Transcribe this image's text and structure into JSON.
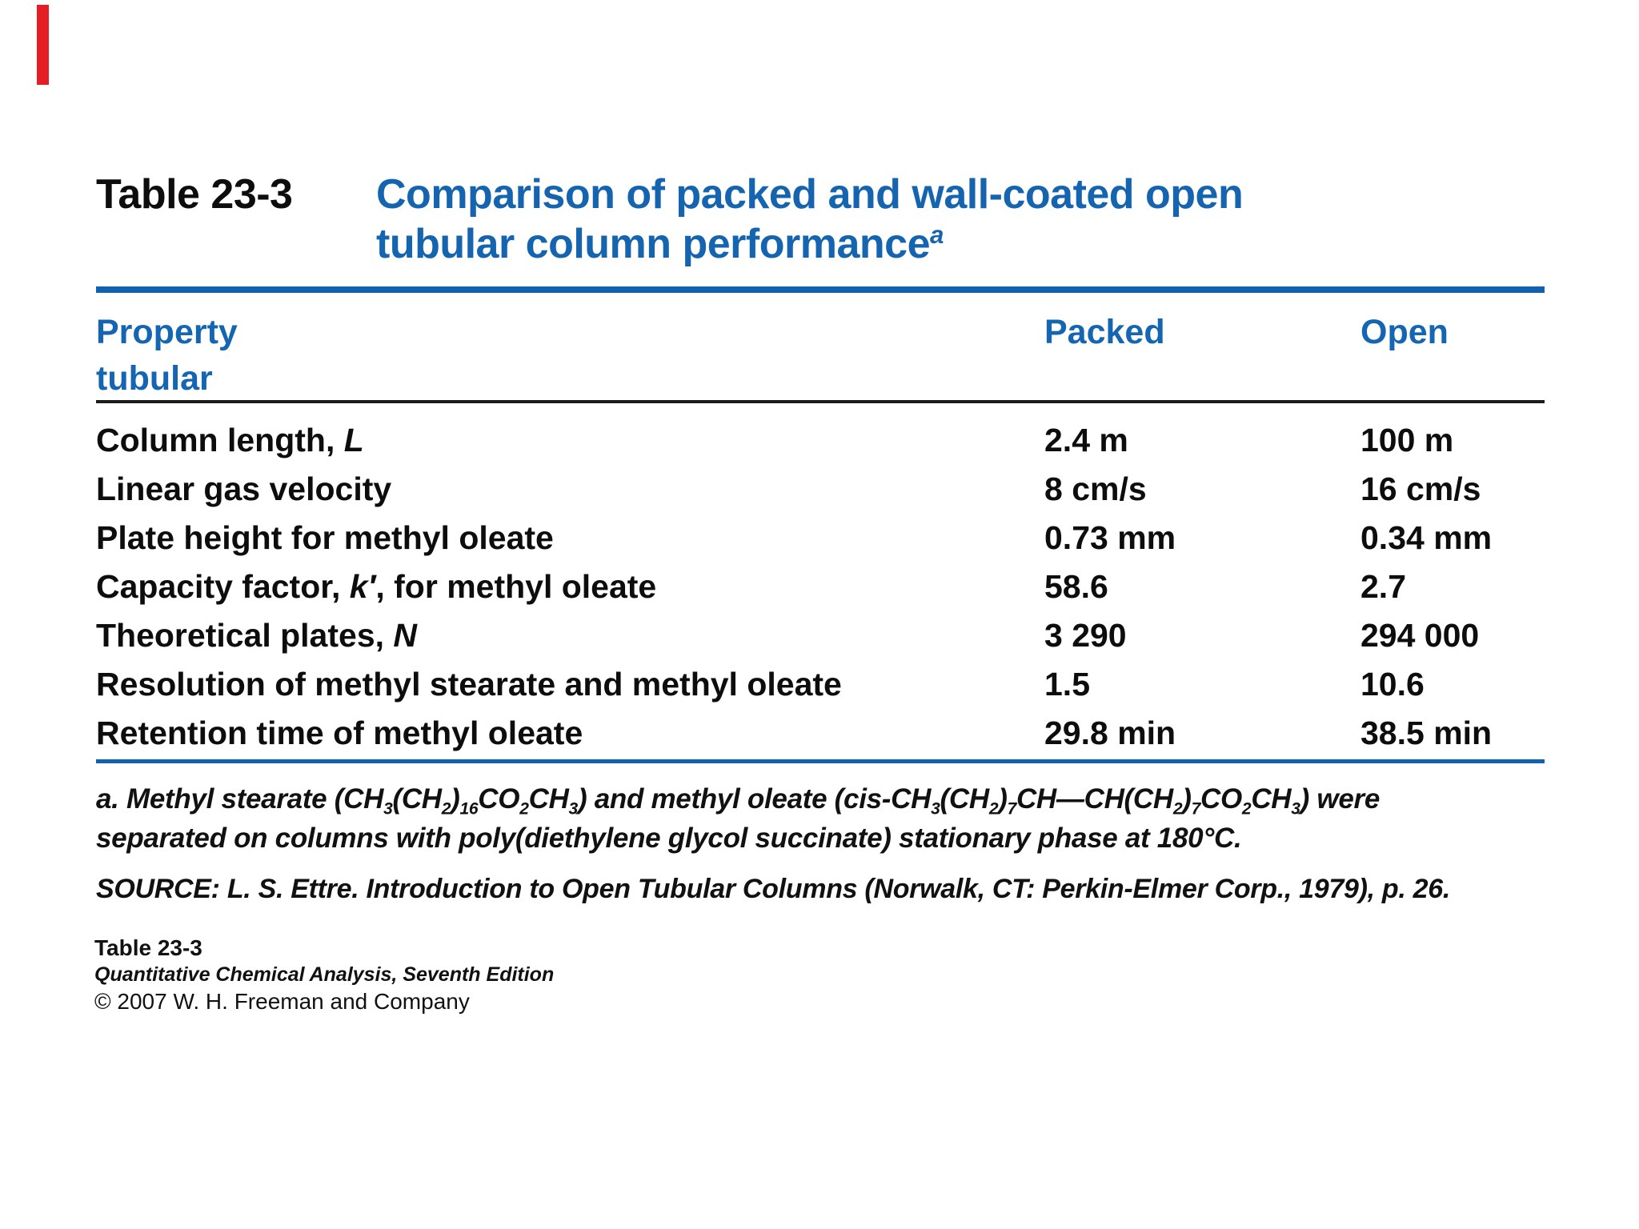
{
  "page": {
    "background": "#ffffff",
    "accent_blue": "#1161b0",
    "header_blue": "#1466b2",
    "text_black": "#0d0d0d",
    "artifact_red": "#e31e24"
  },
  "title": {
    "label": "Table 23-3",
    "line1": "Comparison of packed and wall-coated open",
    "line2": "tubular column performance",
    "superscript": "a"
  },
  "table": {
    "headers": {
      "property_line1": "Property",
      "property_line2": "tubular",
      "packed": "Packed",
      "open": "Open"
    },
    "rows": [
      {
        "property": [
          {
            "t": "Column length, "
          },
          {
            "t": "L",
            "i": true
          }
        ],
        "packed": "2.4 m",
        "open": "100 m"
      },
      {
        "property": "Linear gas velocity",
        "packed": "8 cm/s",
        "open": "16 cm/s"
      },
      {
        "property": "Plate height for methyl oleate",
        "packed": "0.73 mm",
        "open": "0.34 mm"
      },
      {
        "property": [
          {
            "t": "Capacity factor, "
          },
          {
            "t": "k′",
            "i": true
          },
          {
            "t": ", for methyl oleate"
          }
        ],
        "packed": "58.6",
        "open": "2.7"
      },
      {
        "property": [
          {
            "t": "Theoretical plates, "
          },
          {
            "t": "N",
            "i": true
          }
        ],
        "packed": "3 290",
        "open": "294 000"
      },
      {
        "property": "Resolution of methyl stearate and methyl oleate",
        "packed": "1.5",
        "open": "10.6"
      },
      {
        "property": "Retention time of methyl oleate",
        "packed": "29.8 min",
        "open": "38.5 min"
      }
    ]
  },
  "footnote": {
    "line1": [
      {
        "t": "a. Methyl stearate (CH"
      },
      {
        "t": "3",
        "sub": true
      },
      {
        "t": "(CH"
      },
      {
        "t": "2",
        "sub": true
      },
      {
        "t": ")"
      },
      {
        "t": "16",
        "sub": true
      },
      {
        "t": "CO"
      },
      {
        "t": "2",
        "sub": true
      },
      {
        "t": "CH"
      },
      {
        "t": "3",
        "sub": true
      },
      {
        "t": ") and methyl oleate (cis-CH"
      },
      {
        "t": "3",
        "sub": true
      },
      {
        "t": "(CH"
      },
      {
        "t": "2",
        "sub": true
      },
      {
        "t": ")"
      },
      {
        "t": "7",
        "sub": true
      },
      {
        "t": "CH—CH(CH"
      },
      {
        "t": "2",
        "sub": true
      },
      {
        "t": ")"
      },
      {
        "t": "7",
        "sub": true
      },
      {
        "t": "CO"
      },
      {
        "t": "2",
        "sub": true
      },
      {
        "t": "CH"
      },
      {
        "t": "3",
        "sub": true
      },
      {
        "t": ") were"
      }
    ],
    "line2": "separated on columns with poly(diethylene glycol succinate) stationary phase at 180°C."
  },
  "source": "SOURCE: L. S. Ettre. Introduction to Open Tubular Columns (Norwalk, CT: Perkin-Elmer Corp., 1979), p. 26.",
  "credits": {
    "table_ref": "Table 23-3",
    "book": "Quantitative Chemical Analysis, Seventh Edition",
    "copyright": "© 2007 W. H. Freeman and Company"
  }
}
